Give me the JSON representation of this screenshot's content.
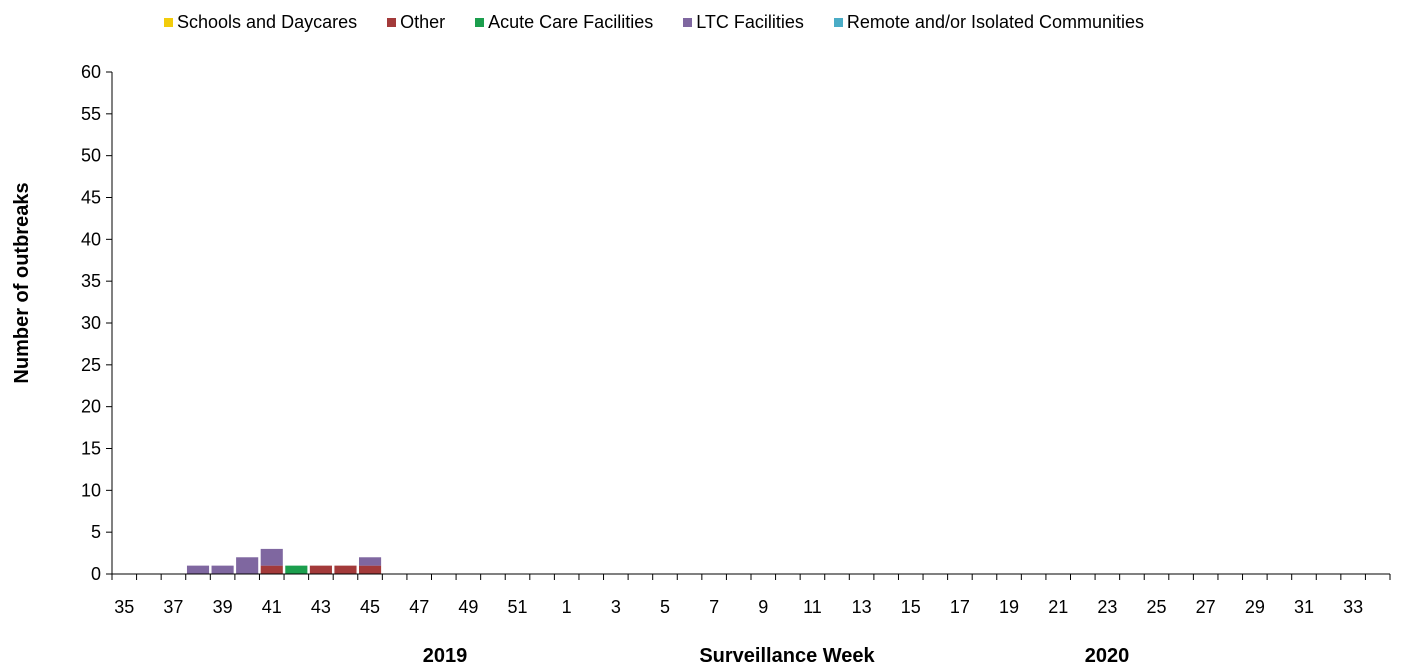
{
  "chart_data": {
    "type": "bar",
    "stacked": true,
    "title": "",
    "ylabel": "Number of outbreaks",
    "xlabel": "Surveillance Week",
    "year_labels": [
      "2019",
      "2020"
    ],
    "ylim": [
      0,
      60
    ],
    "yticks": [
      0,
      5,
      10,
      15,
      20,
      25,
      30,
      35,
      40,
      45,
      50,
      55,
      60
    ],
    "grid": false,
    "legend_position": "top",
    "categories": [
      "35",
      "36",
      "37",
      "38",
      "39",
      "40",
      "41",
      "42",
      "43",
      "44",
      "45",
      "46",
      "47",
      "48",
      "49",
      "50",
      "51",
      "52",
      "1",
      "2",
      "3",
      "4",
      "5",
      "6",
      "7",
      "8",
      "9",
      "10",
      "11",
      "12",
      "13",
      "14",
      "15",
      "16",
      "17",
      "18",
      "19",
      "20",
      "21",
      "22",
      "23",
      "24",
      "25",
      "26",
      "27",
      "28",
      "29",
      "30",
      "31",
      "32",
      "33",
      "34"
    ],
    "tick_labels": [
      "35",
      "",
      "37",
      "",
      "39",
      "",
      "41",
      "",
      "43",
      "",
      "45",
      "",
      "47",
      "",
      "49",
      "",
      "51",
      "",
      "1",
      "",
      "3",
      "",
      "5",
      "",
      "7",
      "",
      "9",
      "",
      "11",
      "",
      "13",
      "",
      "15",
      "",
      "17",
      "",
      "19",
      "",
      "21",
      "",
      "23",
      "",
      "25",
      "",
      "27",
      "",
      "29",
      "",
      "31",
      "",
      "33",
      ""
    ],
    "series": [
      {
        "name": "Schools and Daycares",
        "color": "#f2cc0c",
        "values": [
          0,
          0,
          0,
          0,
          0,
          0,
          0,
          0,
          0,
          0,
          0,
          0,
          0,
          0,
          0,
          0,
          0,
          0,
          0,
          0,
          0,
          0,
          0,
          0,
          0,
          0,
          0,
          0,
          0,
          0,
          0,
          0,
          0,
          0,
          0,
          0,
          0,
          0,
          0,
          0,
          0,
          0,
          0,
          0,
          0,
          0,
          0,
          0,
          0,
          0,
          0,
          0
        ]
      },
      {
        "name": "Other",
        "color": "#a33a3a",
        "values": [
          0,
          0,
          0,
          0,
          0,
          0,
          1,
          0,
          1,
          1,
          1,
          0,
          0,
          0,
          0,
          0,
          0,
          0,
          0,
          0,
          0,
          0,
          0,
          0,
          0,
          0,
          0,
          0,
          0,
          0,
          0,
          0,
          0,
          0,
          0,
          0,
          0,
          0,
          0,
          0,
          0,
          0,
          0,
          0,
          0,
          0,
          0,
          0,
          0,
          0,
          0,
          0
        ]
      },
      {
        "name": "Acute Care Facilities",
        "color": "#1b9e4d",
        "values": [
          0,
          0,
          0,
          0,
          0,
          0,
          0,
          1,
          0,
          0,
          0,
          0,
          0,
          0,
          0,
          0,
          0,
          0,
          0,
          0,
          0,
          0,
          0,
          0,
          0,
          0,
          0,
          0,
          0,
          0,
          0,
          0,
          0,
          0,
          0,
          0,
          0,
          0,
          0,
          0,
          0,
          0,
          0,
          0,
          0,
          0,
          0,
          0,
          0,
          0,
          0,
          0
        ]
      },
      {
        "name": "LTC Facilities",
        "color": "#7f67a0",
        "values": [
          0,
          0,
          0,
          1,
          1,
          2,
          2,
          0,
          0,
          0,
          1,
          0,
          0,
          0,
          0,
          0,
          0,
          0,
          0,
          0,
          0,
          0,
          0,
          0,
          0,
          0,
          0,
          0,
          0,
          0,
          0,
          0,
          0,
          0,
          0,
          0,
          0,
          0,
          0,
          0,
          0,
          0,
          0,
          0,
          0,
          0,
          0,
          0,
          0,
          0,
          0,
          0
        ]
      },
      {
        "name": "Remote and/or Isolated Communities",
        "color": "#4aacc6",
        "values": [
          0,
          0,
          0,
          0,
          0,
          0,
          0,
          0,
          0,
          0,
          0,
          0,
          0,
          0,
          0,
          0,
          0,
          0,
          0,
          0,
          0,
          0,
          0,
          0,
          0,
          0,
          0,
          0,
          0,
          0,
          0,
          0,
          0,
          0,
          0,
          0,
          0,
          0,
          0,
          0,
          0,
          0,
          0,
          0,
          0,
          0,
          0,
          0,
          0,
          0,
          0,
          0
        ]
      }
    ]
  }
}
